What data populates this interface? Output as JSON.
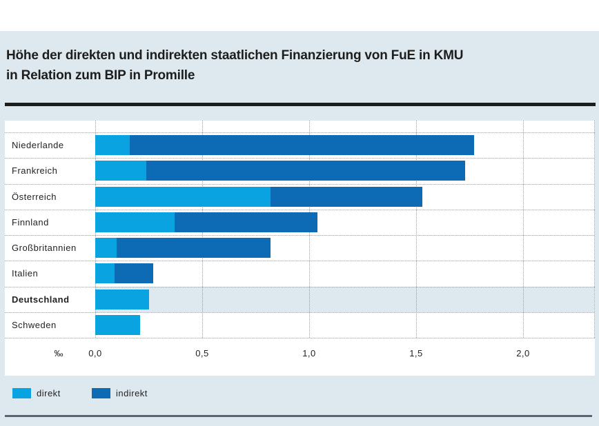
{
  "page": {
    "title_line1": "Höhe der direkten und indirekten staatlichen Finanzierung von FuE in KMU",
    "title_line2": "in Relation zum BIP in Promille"
  },
  "colors": {
    "panel_bg": "#dee9ef",
    "card_bg": "#ffffff",
    "direkt": "#0aa3e2",
    "indirekt": "#0d6bb5",
    "title_text": "#1d1d1b",
    "top_rule": "#1d1d1b",
    "bottom_rule": "#5a6470",
    "grid_dotted": "#9b9b9b",
    "highlight_row_bg": "#dee9ef"
  },
  "chart_data": {
    "type": "bar",
    "orientation": "horizontal",
    "stacked": true,
    "title": "Höhe der direkten und indirekten staatlichen Finanzierung von FuE in KMU in Relation zum BIP in Promille",
    "unit_label": "‰",
    "categories": [
      "Niederlande",
      "Frankreich",
      "Österreich",
      "Finnland",
      "Großbritannien",
      "Italien",
      "Deutschland",
      "Schweden"
    ],
    "series": [
      {
        "name": "direkt",
        "values": [
          0.16,
          0.24,
          0.82,
          0.37,
          0.1,
          0.09,
          0.25,
          0.21
        ]
      },
      {
        "name": "indirekt",
        "values": [
          1.61,
          1.49,
          0.71,
          0.67,
          0.72,
          0.18,
          0.0,
          0.0
        ]
      }
    ],
    "totals": [
      1.77,
      1.73,
      1.53,
      1.04,
      0.82,
      0.27,
      0.25,
      0.21
    ],
    "xlim": [
      0.0,
      2.33
    ],
    "x_ticks": [
      "0,0",
      "0,5",
      "1,0",
      "1,5",
      "2,0"
    ],
    "x_tick_values": [
      0.0,
      0.5,
      1.0,
      1.5,
      2.0
    ],
    "highlighted_category": "Deutschland",
    "highlighted_index": 6,
    "grid": "dotted",
    "legend_position": "bottom",
    "legend_labels": [
      "direkt",
      "indirekt"
    ]
  }
}
